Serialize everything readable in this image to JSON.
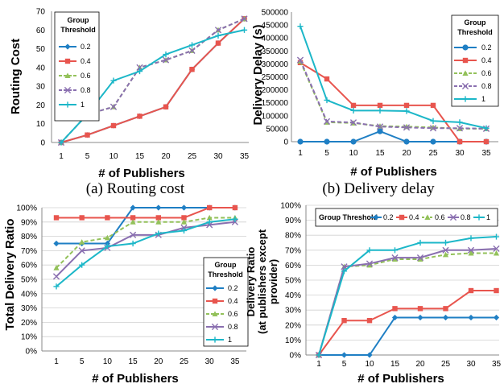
{
  "colors": {
    "0.2": "#1f7fc4",
    "0.4": "#e8554e",
    "0.6": "#93c15a",
    "0.8": "#8a6fb0",
    "1": "#1cb7c8"
  },
  "chart_data": [
    {
      "type": "line",
      "caption": "(a)  Routing cost",
      "xlabel": "# of Publishers",
      "ylabel": "Routing Cost",
      "categories": [
        "1",
        "5",
        "10",
        "15",
        "20",
        "25",
        "30",
        "35"
      ],
      "ylim": [
        0,
        70
      ],
      "yticks": [
        "0",
        "10",
        "20",
        "30",
        "40",
        "50",
        "60",
        "70"
      ],
      "legend_title": [
        "Group",
        "Threshold"
      ],
      "legend_position": "top-left",
      "series": [
        {
          "name": "0.2",
          "marker": "diamond",
          "dashed": false,
          "values": [
            0,
            4,
            9,
            14,
            19,
            39,
            53,
            66
          ]
        },
        {
          "name": "0.4",
          "marker": "square",
          "dashed": false,
          "values": [
            0,
            4,
            9,
            14,
            19,
            39,
            53,
            66
          ]
        },
        {
          "name": "0.6",
          "marker": "triangle",
          "dashed": true,
          "values": [
            0,
            15,
            19,
            40,
            44,
            49,
            60,
            66
          ]
        },
        {
          "name": "0.8",
          "marker": "x",
          "dashed": true,
          "values": [
            0,
            15,
            19,
            40,
            44,
            49,
            60,
            66
          ]
        },
        {
          "name": "1",
          "marker": "plus",
          "dashed": false,
          "values": [
            0,
            15,
            33,
            38,
            47,
            52,
            57,
            60
          ]
        }
      ]
    },
    {
      "type": "line",
      "caption": "(b)  Delivery delay",
      "xlabel": "# of Publishers",
      "ylabel": "Delivery Delay (s)",
      "categories": [
        "1",
        "5",
        "10",
        "15",
        "20",
        "25",
        "30",
        "35"
      ],
      "ylim": [
        0,
        500000
      ],
      "yticks": [
        "0",
        "50000",
        "100000",
        "150000",
        "200000",
        "250000",
        "300000",
        "350000",
        "400000",
        "450000",
        "500000"
      ],
      "legend_title": [
        "Group",
        "Threshold"
      ],
      "legend_position": "top-right",
      "series": [
        {
          "name": "0.2",
          "marker": "circle",
          "dashed": false,
          "values": [
            0,
            0,
            0,
            40000,
            0,
            0,
            0,
            0
          ]
        },
        {
          "name": "0.4",
          "marker": "square",
          "dashed": false,
          "values": [
            305000,
            242000,
            140000,
            140000,
            140000,
            140000,
            0,
            0
          ]
        },
        {
          "name": "0.6",
          "marker": "triangle",
          "dashed": true,
          "values": [
            310000,
            75000,
            72000,
            60000,
            58000,
            55000,
            50000,
            50000
          ]
        },
        {
          "name": "0.8",
          "marker": "x",
          "dashed": true,
          "values": [
            315000,
            78000,
            74000,
            58000,
            55000,
            52000,
            52000,
            50000
          ]
        },
        {
          "name": "1",
          "marker": "plus",
          "dashed": false,
          "values": [
            445000,
            160000,
            120000,
            120000,
            118000,
            80000,
            75000,
            52000
          ]
        }
      ]
    },
    {
      "type": "line",
      "caption": "",
      "xlabel": "# of Publishers",
      "ylabel": "Total Delivery Ratio",
      "categories": [
        "1",
        "5",
        "10",
        "15",
        "20",
        "25",
        "30",
        "35"
      ],
      "ylim": [
        0,
        100
      ],
      "yticks": [
        "0%",
        "10%",
        "20%",
        "30%",
        "40%",
        "50%",
        "60%",
        "70%",
        "80%",
        "90%",
        "100%"
      ],
      "legend_title": [
        "Group",
        "Threshold"
      ],
      "legend_position": "bottom-right",
      "series": [
        {
          "name": "0.2",
          "marker": "diamond",
          "dashed": false,
          "values": [
            75,
            75,
            75,
            100,
            100,
            100,
            100,
            100
          ]
        },
        {
          "name": "0.4",
          "marker": "square",
          "dashed": false,
          "values": [
            93,
            93,
            93,
            93,
            93,
            93,
            100,
            100
          ]
        },
        {
          "name": "0.6",
          "marker": "triangle",
          "dashed": true,
          "values": [
            58,
            76,
            79,
            90,
            90,
            90,
            93,
            93
          ]
        },
        {
          "name": "0.8",
          "marker": "x",
          "dashed": false,
          "values": [
            52,
            70,
            72,
            81,
            81,
            86,
            88,
            90
          ]
        },
        {
          "name": "1",
          "marker": "plus",
          "dashed": false,
          "values": [
            45,
            60,
            73,
            75,
            82,
            84,
            90,
            92
          ]
        }
      ]
    },
    {
      "type": "line",
      "caption": "",
      "xlabel": "# of Publishers",
      "ylabel": [
        "Delivery Ratio",
        "(at publishers except",
        "provider)"
      ],
      "categories": [
        "1",
        "5",
        "10",
        "15",
        "20",
        "25",
        "30",
        "35"
      ],
      "ylim": [
        0,
        100
      ],
      "yticks": [
        "0%",
        "10%",
        "20%",
        "30%",
        "40%",
        "50%",
        "60%",
        "70%",
        "80%",
        "90%",
        "100%"
      ],
      "legend_title": [
        "Group Threshold"
      ],
      "legend_position": "top",
      "series": [
        {
          "name": "0.2",
          "marker": "diamond",
          "dashed": false,
          "values": [
            0,
            0,
            0,
            25,
            25,
            25,
            25,
            25
          ]
        },
        {
          "name": "0.4",
          "marker": "square",
          "dashed": false,
          "values": [
            0,
            23,
            23,
            31,
            31,
            31,
            43,
            43
          ]
        },
        {
          "name": "0.6",
          "marker": "triangle",
          "dashed": true,
          "values": [
            0,
            59,
            60,
            64,
            64,
            67,
            68,
            68
          ]
        },
        {
          "name": "0.8",
          "marker": "x",
          "dashed": false,
          "values": [
            0,
            59,
            61,
            65,
            65,
            70,
            70,
            71
          ]
        },
        {
          "name": "1",
          "marker": "plus",
          "dashed": false,
          "values": [
            0,
            56,
            70,
            70,
            75,
            75,
            78,
            79
          ]
        }
      ]
    }
  ]
}
